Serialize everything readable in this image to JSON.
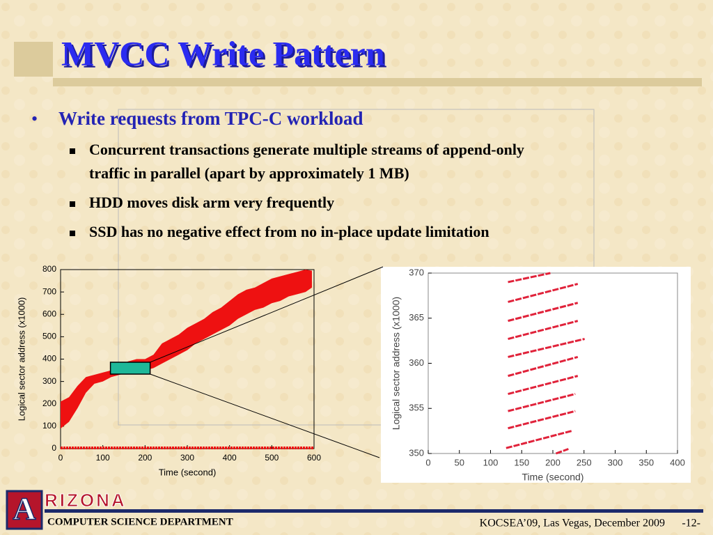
{
  "slide": {
    "title": "MVCC Write Pattern",
    "bullet": "Write requests from TPC-C workload",
    "sub_bullets": [
      [
        "Concurrent transactions generate multiple streams of append-only",
        "traffic in parallel (apart by approximately 1 MB)"
      ],
      [
        "HDD moves disk arm very frequently"
      ],
      [
        "SSD has no negative effect from no in-place update limitation"
      ]
    ],
    "logo": {
      "letter": "A",
      "word": "RIZONA"
    },
    "department": "COMPUTER SCIENCE DEPARTMENT",
    "venue": "KOCSEA’09, Las Vegas, December 2009",
    "page": "-12-"
  },
  "chart_data": [
    {
      "type": "band",
      "xlabel": "Time (second)",
      "ylabel": "Logical sector address (x1000)",
      "color": "#ee1111",
      "x": [
        0,
        20,
        40,
        60,
        80,
        100,
        120,
        140,
        160,
        180,
        200,
        220,
        240,
        260,
        280,
        300,
        320,
        340,
        360,
        380,
        400,
        420,
        440,
        460,
        480,
        500,
        520,
        540,
        560,
        580,
        595
      ],
      "low": [
        90,
        120,
        180,
        250,
        290,
        300,
        320,
        330,
        340,
        350,
        350,
        360,
        380,
        400,
        420,
        440,
        470,
        490,
        510,
        530,
        550,
        580,
        600,
        620,
        630,
        650,
        660,
        680,
        690,
        700,
        720
      ],
      "high": [
        210,
        230,
        280,
        320,
        330,
        340,
        350,
        370,
        390,
        400,
        400,
        420,
        470,
        490,
        510,
        540,
        560,
        580,
        610,
        630,
        660,
        690,
        710,
        720,
        740,
        760,
        770,
        780,
        790,
        800,
        795
      ],
      "floor": {
        "x": [
          0,
          600
        ],
        "values": [
          3,
          3
        ]
      },
      "highlight": {
        "x": [
          118,
          212
        ],
        "values": [
          333,
          386
        ],
        "color": "#1fb899"
      },
      "xlim": [
        0,
        600
      ],
      "xticks": [
        0,
        100,
        200,
        300,
        400,
        500,
        600
      ],
      "ylim": [
        0,
        800
      ],
      "yticks": [
        0,
        100,
        200,
        300,
        400,
        500,
        600,
        700,
        800
      ]
    },
    {
      "type": "line",
      "xlabel": "Time (second)",
      "ylabel": "Logical sector address (x1000)",
      "color": "#e0223a",
      "x": [
        128,
        196,
        null,
        128,
        240,
        null,
        128,
        240,
        null,
        128,
        240,
        null,
        128,
        251,
        null,
        128,
        240,
        null,
        128,
        240,
        null,
        128,
        236,
        null,
        128,
        236,
        null,
        125,
        230,
        null,
        205,
        225
      ],
      "values": [
        369.0,
        370.0,
        null,
        366.8,
        368.8,
        null,
        364.7,
        366.7,
        null,
        362.7,
        364.7,
        null,
        360.7,
        362.7,
        null,
        358.6,
        360.7,
        null,
        356.6,
        358.6,
        null,
        354.7,
        356.6,
        null,
        352.8,
        354.7,
        null,
        350.6,
        352.5,
        null,
        350,
        350.5
      ],
      "xlim": [
        0,
        400
      ],
      "xticks": [
        0,
        50,
        100,
        150,
        200,
        250,
        300,
        350,
        400
      ],
      "ylim": [
        350,
        370
      ],
      "yticks": [
        350,
        355,
        360,
        365,
        370
      ]
    }
  ]
}
